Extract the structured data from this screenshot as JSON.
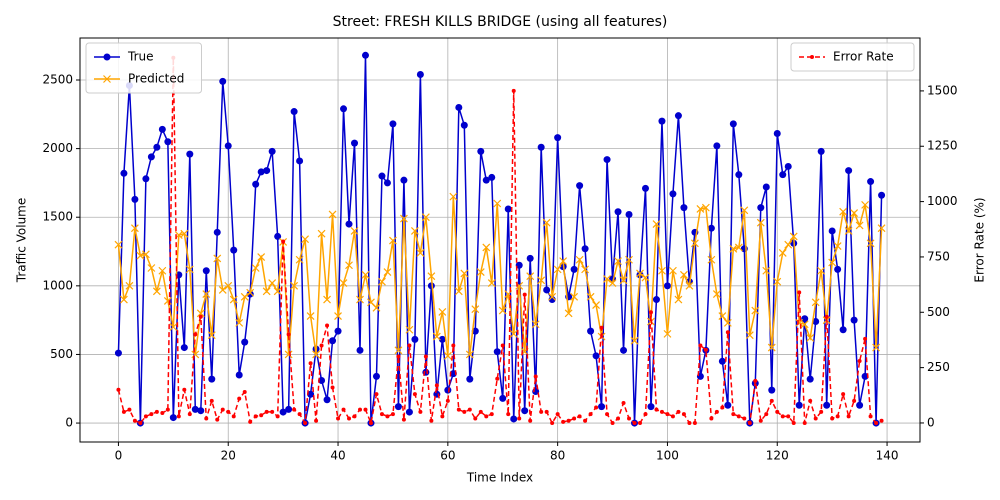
{
  "chart_data": {
    "type": "line",
    "title": "Street: FRESH KILLS BRIDGE (using all features)",
    "x_label": "Time Index",
    "y_label": "Traffic Volume",
    "y2_label": "Error Rate (%)",
    "x": [
      0,
      1,
      2,
      3,
      4,
      5,
      6,
      7,
      8,
      9,
      10,
      11,
      12,
      13,
      14,
      15,
      16,
      17,
      18,
      19,
      20,
      21,
      22,
      23,
      24,
      25,
      26,
      27,
      28,
      29,
      30,
      31,
      32,
      33,
      34,
      35,
      36,
      37,
      38,
      39,
      40,
      41,
      42,
      43,
      44,
      45,
      46,
      47,
      48,
      49,
      50,
      51,
      52,
      53,
      54,
      55,
      56,
      57,
      58,
      59,
      60,
      61,
      62,
      63,
      64,
      65,
      66,
      67,
      68,
      69,
      70,
      71,
      72,
      73,
      74,
      75,
      76,
      77,
      78,
      79,
      80,
      81,
      82,
      83,
      84,
      85,
      86,
      87,
      88,
      89,
      90,
      91,
      92,
      93,
      94,
      95,
      96,
      97,
      98,
      99,
      100,
      101,
      102,
      103,
      104,
      105,
      106,
      107,
      108,
      109,
      110,
      111,
      112,
      113,
      114,
      115,
      116,
      117,
      118,
      119,
      120,
      121,
      122,
      123,
      124,
      125,
      126,
      127,
      128,
      129,
      130,
      131,
      132,
      133,
      134,
      135,
      136,
      137,
      138,
      139
    ],
    "series": [
      {
        "name": "True",
        "color": "#0000cd",
        "marker": "o",
        "linestyle": "solid",
        "axis": "y",
        "values": [
          510,
          1820,
          2460,
          1630,
          0,
          1780,
          1940,
          2010,
          2140,
          2050,
          40,
          1080,
          550,
          1960,
          100,
          90,
          1110,
          320,
          1390,
          2490,
          2020,
          1260,
          350,
          590,
          940,
          1740,
          1830,
          1840,
          1980,
          1360,
          80,
          100,
          2270,
          1910,
          0,
          210,
          540,
          310,
          170,
          600,
          670,
          2290,
          1450,
          2040,
          530,
          2680,
          0,
          340,
          1800,
          1750,
          2180,
          120,
          1770,
          80,
          610,
          2540,
          370,
          1000,
          210,
          610,
          240,
          360,
          2300,
          2170,
          320,
          670,
          1980,
          1770,
          1790,
          520,
          180,
          1560,
          30,
          1150,
          90,
          1200,
          230,
          2010,
          970,
          900,
          2080,
          1140,
          920,
          1120,
          1730,
          1270,
          670,
          490,
          120,
          1920,
          1050,
          1540,
          530,
          1520,
          0,
          1080,
          1710,
          120,
          900,
          2200,
          1000,
          1670,
          2240,
          1570,
          1030,
          1390,
          340,
          530,
          1420,
          2020,
          450,
          130,
          2180,
          1810,
          1270,
          0,
          290,
          1570,
          1720,
          240,
          2110,
          1810,
          1870,
          1310,
          130,
          760,
          320,
          740,
          1980,
          130,
          1400,
          1120,
          680,
          1840,
          750,
          130,
          340,
          1760,
          0,
          1660
        ]
      },
      {
        "name": "Predicted",
        "color": "#ffa500",
        "marker": "x",
        "linestyle": "solid",
        "axis": "y",
        "values": [
          1300,
          900,
          1000,
          1420,
          1220,
          1230,
          1130,
          960,
          1110,
          890,
          700,
          1370,
          1380,
          1120,
          500,
          800,
          940,
          640,
          1200,
          970,
          1000,
          900,
          730,
          920,
          950,
          1130,
          1210,
          960,
          1020,
          960,
          1320,
          500,
          1000,
          1190,
          1340,
          780,
          500,
          1380,
          900,
          1520,
          780,
          1020,
          1150,
          1400,
          900,
          1080,
          880,
          840,
          1030,
          1100,
          1330,
          530,
          1490,
          680,
          1400,
          1240,
          1500,
          1070,
          630,
          810,
          490,
          1650,
          960,
          1090,
          500,
          830,
          1100,
          1280,
          1020,
          1600,
          820,
          940,
          650,
          1000,
          520,
          1070,
          720,
          1040,
          1460,
          920,
          1120,
          1180,
          800,
          920,
          1190,
          1120,
          920,
          860,
          630,
          1050,
          1020,
          1180,
          1040,
          1190,
          600,
          1090,
          1060,
          740,
          1450,
          1110,
          650,
          1110,
          900,
          1080,
          1000,
          1310,
          1560,
          1570,
          1190,
          940,
          780,
          730,
          1270,
          1280,
          1550,
          640,
          820,
          1460,
          1110,
          550,
          1030,
          1240,
          1300,
          1360,
          730,
          720,
          620,
          880,
          1110,
          750,
          1170,
          1290,
          1540,
          1400,
          1530,
          1440,
          1590,
          1310,
          550,
          1420
        ]
      },
      {
        "name": "Error Rate",
        "color": "#ff0000",
        "marker": ".",
        "linestyle": "dashed",
        "axis": "y2",
        "values": [
          150,
          50,
          60,
          10,
          0,
          30,
          40,
          50,
          45,
          60,
          1650,
          30,
          150,
          40,
          400,
          480,
          20,
          100,
          15,
          60,
          50,
          30,
          110,
          140,
          5,
          30,
          35,
          50,
          50,
          30,
          820,
          400,
          60,
          40,
          0,
          270,
          10,
          350,
          440,
          160,
          20,
          60,
          20,
          30,
          60,
          60,
          0,
          130,
          40,
          30,
          40,
          300,
          15,
          350,
          130,
          50,
          300,
          10,
          170,
          30,
          100,
          350,
          60,
          50,
          60,
          20,
          50,
          30,
          40,
          200,
          350,
          40,
          1500,
          20,
          580,
          10,
          210,
          50,
          50,
          0,
          40,
          5,
          10,
          20,
          30,
          10,
          40,
          70,
          430,
          40,
          0,
          20,
          90,
          20,
          0,
          0,
          40,
          500,
          60,
          50,
          40,
          30,
          50,
          40,
          0,
          0,
          350,
          330,
          20,
          50,
          70,
          410,
          40,
          30,
          20,
          0,
          190,
          10,
          40,
          100,
          50,
          30,
          30,
          0,
          590,
          0,
          100,
          20,
          50,
          480,
          20,
          30,
          130,
          30,
          100,
          280,
          380,
          30,
          0,
          10
        ]
      }
    ],
    "xlim": [
      -7,
      146
    ],
    "ylim": [
      -138,
      2806
    ],
    "y2lim": [
      -86,
      1739
    ],
    "xticks": [
      0,
      20,
      40,
      60,
      80,
      100,
      120,
      140
    ],
    "yticks": [
      0,
      500,
      1000,
      1500,
      2000,
      2500
    ],
    "y2ticks": [
      0,
      250,
      500,
      750,
      1000,
      1250,
      1500
    ],
    "grid": true,
    "legend": "upper left",
    "y2_legend": "upper right"
  }
}
